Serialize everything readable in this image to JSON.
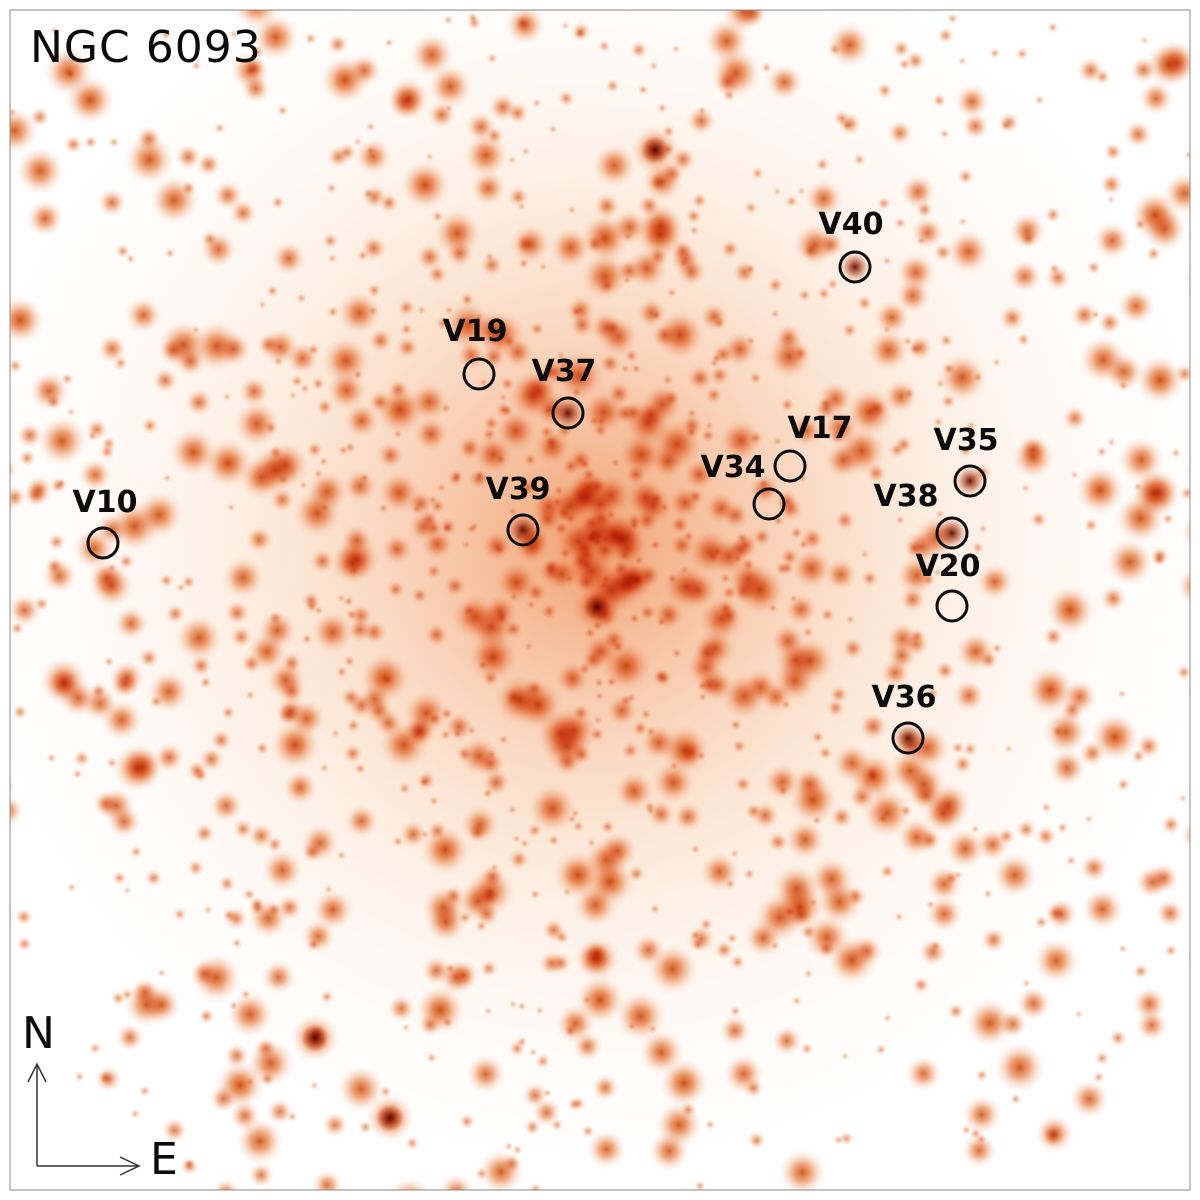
{
  "image": {
    "title": "NGC 6093",
    "colormap": "white-orange-dark red",
    "colors": {
      "background": "#ffffff",
      "halo": "#f39a52",
      "star_core": "#c84a10",
      "star_dark": "#7a1a04",
      "marker": "#0b0b0b"
    }
  },
  "compass": {
    "north_label": "N",
    "east_label": "E"
  },
  "variables": [
    {
      "label": "V10"
    },
    {
      "label": "V19"
    },
    {
      "label": "V37"
    },
    {
      "label": "V39"
    },
    {
      "label": "V40"
    },
    {
      "label": "V17"
    },
    {
      "label": "V34"
    },
    {
      "label": "V35"
    },
    {
      "label": "V38"
    },
    {
      "label": "V20"
    },
    {
      "label": "V36"
    }
  ]
}
